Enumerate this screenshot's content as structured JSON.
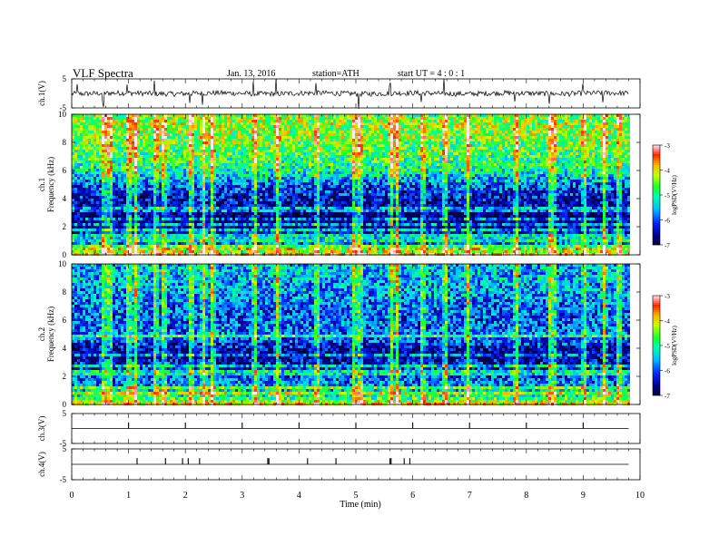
{
  "header": {
    "title": "VLF  Spectra",
    "date": "Jan. 13, 2016",
    "station": "station=ATH",
    "start": "start  UT  =  4 : 0 : 1"
  },
  "chart_data": [
    {
      "id": "ch1-voltage",
      "type": "line",
      "ylabel": "ch.1(V)",
      "ylim": [
        -5,
        5
      ],
      "yticks": [
        "5",
        "-5"
      ],
      "xlim": [
        0,
        10
      ],
      "baseline": 0,
      "noise_amplitude": 0.9,
      "spikes_x": [
        0.1,
        0.55,
        0.98,
        1.45,
        2.08,
        2.3,
        3.2,
        3.6,
        4.3,
        5.05,
        5.6,
        6.15,
        6.55,
        7.8,
        8.4,
        9.0,
        9.35
      ]
    },
    {
      "id": "ch1-spectrogram",
      "type": "heatmap",
      "ylabel_channel": "ch.1",
      "ylabel": "Frequency (kHz)",
      "ylim": [
        0,
        10
      ],
      "yticks": [
        "0",
        "2",
        "4",
        "6",
        "8",
        "10"
      ],
      "xlim": [
        0,
        9.8
      ],
      "colorbar": {
        "label": "logPSD(V²/Hz)",
        "range": [
          -7,
          -3
        ],
        "ticks": [
          "-3",
          "-4",
          "-5",
          "-6",
          "-7"
        ]
      },
      "profile": [
        {
          "f": 0.0,
          "v": -3.4
        },
        {
          "f": 0.5,
          "v": -5.4
        },
        {
          "f": 1.0,
          "v": -6.1
        },
        {
          "f": 1.5,
          "v": -6.3
        },
        {
          "f": 2.0,
          "v": -6.7
        },
        {
          "f": 2.6,
          "v": -6.9
        },
        {
          "f": 3.2,
          "v": -6.7
        },
        {
          "f": 4.0,
          "v": -6.4
        },
        {
          "f": 5.0,
          "v": -6.0
        },
        {
          "f": 5.8,
          "v": -5.2
        },
        {
          "f": 6.5,
          "v": -4.9
        },
        {
          "f": 7.5,
          "v": -4.7
        },
        {
          "f": 8.5,
          "v": -4.5
        },
        {
          "f": 9.3,
          "v": -4.4
        },
        {
          "f": 10.0,
          "v": -4.5
        }
      ],
      "lines_khz": [
        0.35,
        0.65,
        0.95,
        1.2,
        1.45,
        1.75,
        2.2,
        2.55,
        3.1,
        3.3
      ],
      "bursts_x": [
        0.55,
        0.65,
        0.98,
        1.1,
        1.45,
        1.6,
        2.08,
        2.3,
        2.45,
        3.2,
        3.6,
        4.3,
        4.95,
        5.05,
        5.6,
        5.7,
        6.15,
        6.55,
        6.95,
        7.8,
        8.4,
        8.45,
        9.0,
        9.35,
        9.6
      ]
    },
    {
      "id": "ch2-spectrogram",
      "type": "heatmap",
      "ylabel_channel": "ch.2",
      "ylabel": "Frequency (kHz)",
      "ylim": [
        0,
        10
      ],
      "yticks": [
        "0",
        "2",
        "4",
        "6",
        "8",
        "10"
      ],
      "xlim": [
        0,
        9.8
      ],
      "colorbar": {
        "label": "logPSD(V²/Hz)",
        "range": [
          -7,
          -3
        ],
        "ticks": [
          "-3",
          "-4",
          "-5",
          "-6",
          "-7"
        ]
      },
      "profile": [
        {
          "f": 0.0,
          "v": -3.8
        },
        {
          "f": 0.5,
          "v": -5.0
        },
        {
          "f": 1.0,
          "v": -5.4
        },
        {
          "f": 1.5,
          "v": -5.8
        },
        {
          "f": 2.0,
          "v": -6.0
        },
        {
          "f": 2.5,
          "v": -6.2
        },
        {
          "f": 3.0,
          "v": -6.4
        },
        {
          "f": 3.5,
          "v": -6.8
        },
        {
          "f": 4.0,
          "v": -6.5
        },
        {
          "f": 4.5,
          "v": -6.0
        },
        {
          "f": 5.0,
          "v": -5.8
        },
        {
          "f": 6.0,
          "v": -6.0
        },
        {
          "f": 7.0,
          "v": -5.9
        },
        {
          "f": 8.0,
          "v": -5.7
        },
        {
          "f": 9.0,
          "v": -5.6
        },
        {
          "f": 10.0,
          "v": -5.5
        }
      ],
      "lines_khz": [
        0.3,
        0.8,
        1.2,
        1.5,
        2.1,
        2.4,
        2.7,
        3.2,
        3.5,
        4.6,
        4.9
      ],
      "bursts_x": [
        0.55,
        0.65,
        0.98,
        1.1,
        1.45,
        1.6,
        2.08,
        2.3,
        2.45,
        3.2,
        3.6,
        4.3,
        4.95,
        5.05,
        5.6,
        5.7,
        6.15,
        6.55,
        6.95,
        7.8,
        8.4,
        8.45,
        9.0,
        9.35,
        9.6
      ]
    },
    {
      "id": "ch3-voltage",
      "type": "line",
      "ylabel": "ch.3(V)",
      "ylim": [
        -5,
        5
      ],
      "yticks": [
        "5",
        "-5"
      ],
      "xlim": [
        0,
        10
      ],
      "baseline": 0,
      "spikes_x": [
        1.0,
        2.0,
        3.0,
        4.0,
        5.0,
        6.0,
        7.0,
        8.0,
        9.0
      ]
    },
    {
      "id": "ch4-voltage",
      "type": "line",
      "ylabel": "ch.4(V)",
      "ylim": [
        -5,
        5
      ],
      "yticks": [
        "5",
        "-5"
      ],
      "xlim": [
        0,
        10
      ],
      "baseline": 0,
      "spikes_x": [
        1.15,
        1.65,
        1.95,
        2.05,
        2.25,
        3.45,
        3.47,
        4.15,
        4.65,
        5.6,
        5.62,
        5.85,
        5.95
      ]
    }
  ],
  "x_axis": {
    "label": "Time  (min)",
    "range": [
      0,
      10
    ],
    "ticks": [
      "0",
      "1",
      "2",
      "3",
      "4",
      "5",
      "6",
      "7",
      "8",
      "9",
      "10"
    ]
  }
}
